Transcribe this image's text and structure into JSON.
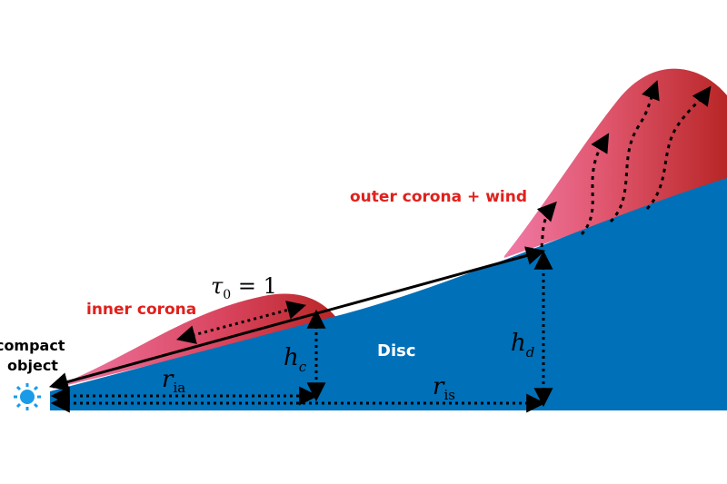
{
  "labels": {
    "compact_object_line1": "compact",
    "compact_object_line2": "object",
    "inner_corona": "inner corona",
    "outer_corona": "outer corona + wind",
    "disc": "Disc",
    "tau_symbol": "τ",
    "tau_sub": "0",
    "tau_eq": " = 1",
    "h_c_symbol": "h",
    "h_c_sub": "c",
    "h_d_symbol": "h",
    "h_d_sub": "d",
    "r_ia_symbol": "r",
    "r_ia_sub": "ia",
    "r_is_symbol": "r",
    "r_is_sub": "is"
  },
  "colors": {
    "disc": "#0070b8",
    "corona_light": "#f07aa6",
    "corona_dark": "#b82626",
    "label_red": "#e0201c",
    "label_white": "#ffffff",
    "line": "#000000",
    "star": "#1a9be8"
  }
}
